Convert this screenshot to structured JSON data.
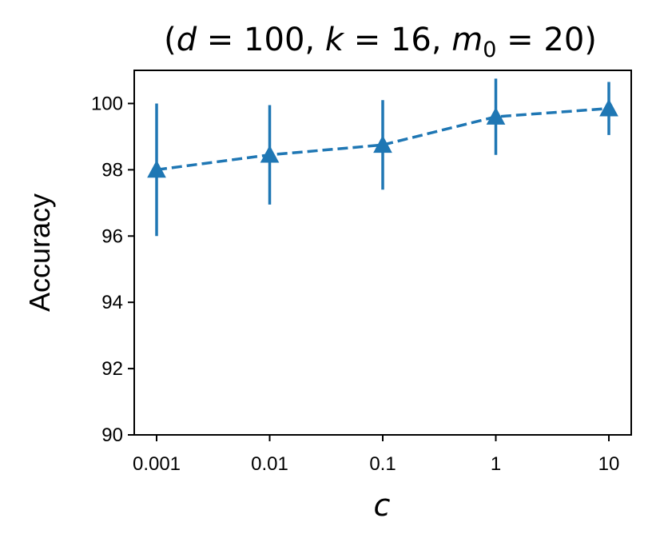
{
  "chart_data": {
    "type": "line",
    "title": "(d = 100, k = 16, m₀ = 20)",
    "title_parts": [
      "(",
      "d",
      " = 100, ",
      "k",
      " = 16, ",
      "m",
      "0",
      " = 20)"
    ],
    "xlabel": "c",
    "ylabel": "Accuracy",
    "x_scale": "log",
    "categories": [
      "0.001",
      "0.01",
      "0.1",
      "1",
      "10"
    ],
    "x": [
      0.001,
      0.01,
      0.1,
      1,
      10
    ],
    "ylim": [
      90,
      101
    ],
    "yticks": [
      90,
      92,
      94,
      96,
      98,
      100
    ],
    "ytick_labels": [
      "90",
      "92",
      "94",
      "96",
      "98",
      "100"
    ],
    "grid": false,
    "series": [
      {
        "values": [
          98.0,
          98.45,
          98.75,
          99.6,
          99.85
        ],
        "errors": [
          2.0,
          1.5,
          1.35,
          1.15,
          0.8
        ],
        "color": "#1f77b4",
        "line_style": "dashed",
        "marker": "triangle-up"
      }
    ]
  }
}
